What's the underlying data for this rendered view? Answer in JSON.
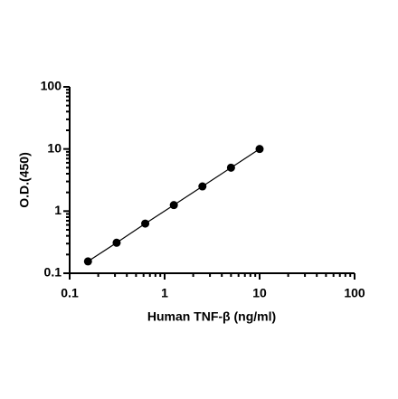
{
  "chart_data": {
    "type": "line",
    "x_label": "Human TNF-β (ng/ml)",
    "y_label": "O.D.(450)",
    "x": [
      0.156,
      0.3125,
      0.625,
      1.25,
      2.5,
      5,
      10
    ],
    "series": [
      {
        "color": "#000000",
        "values": [
          0.155,
          0.31,
          0.63,
          1.25,
          2.5,
          5,
          10
        ]
      }
    ],
    "xlim": [
      0.1,
      100
    ],
    "xticks": [
      0.1,
      1,
      10,
      100
    ],
    "ylim": [
      0.1,
      100
    ],
    "yticks": [
      0.1,
      1,
      10,
      100
    ],
    "log_x": true,
    "log_y": true,
    "minor_ticks": true,
    "markers": true
  }
}
